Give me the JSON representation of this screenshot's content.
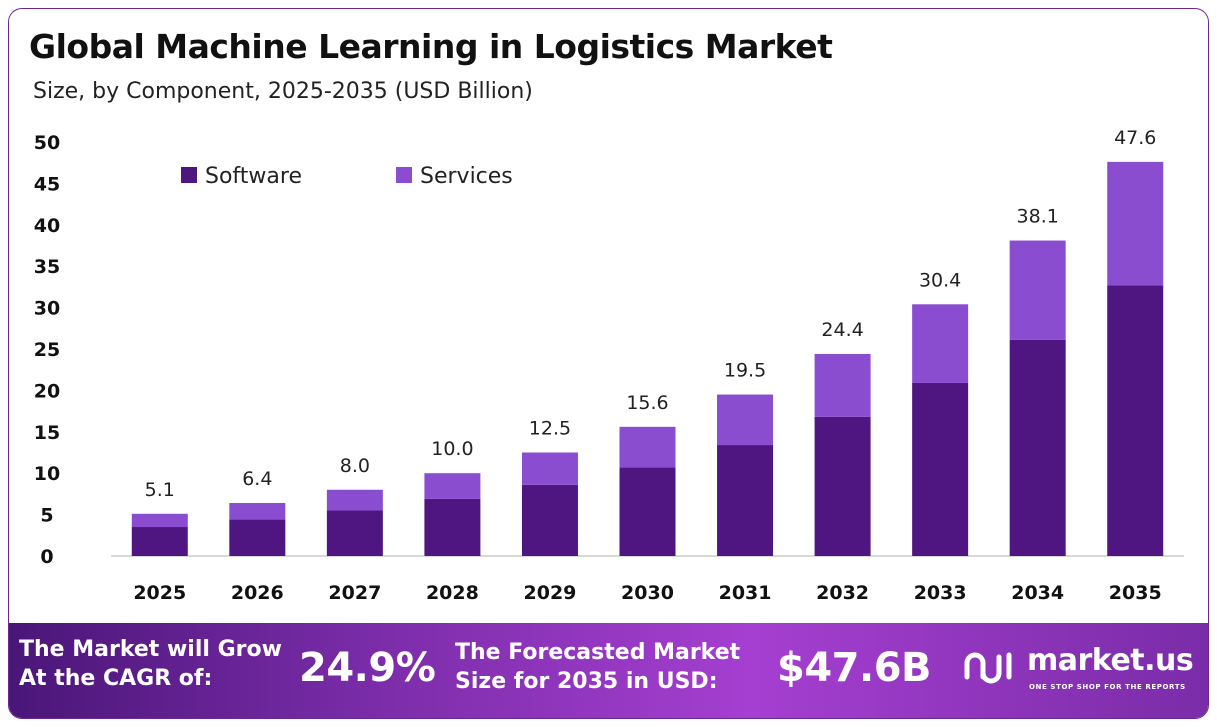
{
  "header": {
    "title": "Global Machine Learning in Logistics Market",
    "subtitle": "Size, by Component, 2025-2035 (USD Billion)"
  },
  "chart_data": {
    "type": "bar",
    "stacked": true,
    "categories": [
      "2025",
      "2026",
      "2027",
      "2028",
      "2029",
      "2030",
      "2031",
      "2032",
      "2033",
      "2034",
      "2035"
    ],
    "series": [
      {
        "name": "Software",
        "color": "#4f1681",
        "values": [
          3.5,
          4.4,
          5.5,
          6.9,
          8.6,
          10.7,
          13.4,
          16.8,
          20.9,
          26.1,
          32.7
        ]
      },
      {
        "name": "Services",
        "color": "#8a4dd0",
        "values": [
          1.6,
          2.0,
          2.5,
          3.1,
          3.9,
          4.9,
          6.1,
          7.6,
          9.5,
          12.0,
          14.9
        ]
      }
    ],
    "totals": [
      "5.1",
      "6.4",
      "8.0",
      "10.0",
      "12.5",
      "15.6",
      "19.5",
      "24.4",
      "30.4",
      "38.1",
      "47.6"
    ],
    "y_ticks": [
      0,
      5,
      10,
      15,
      20,
      25,
      30,
      35,
      40,
      45,
      50
    ],
    "ylim": [
      0,
      50
    ],
    "grid": false,
    "legend_position": "top-left"
  },
  "footer": {
    "cagr_line1": "The Market will Grow",
    "cagr_line2": "At the CAGR of:",
    "cagr_value": "24.9%",
    "forecast_line1": "The Forecasted Market",
    "forecast_line2": "Size for 2035 in USD:",
    "forecast_value": "$47.6B",
    "brand_name": "market.us",
    "brand_tagline": "ONE STOP SHOP FOR THE REPORTS"
  }
}
